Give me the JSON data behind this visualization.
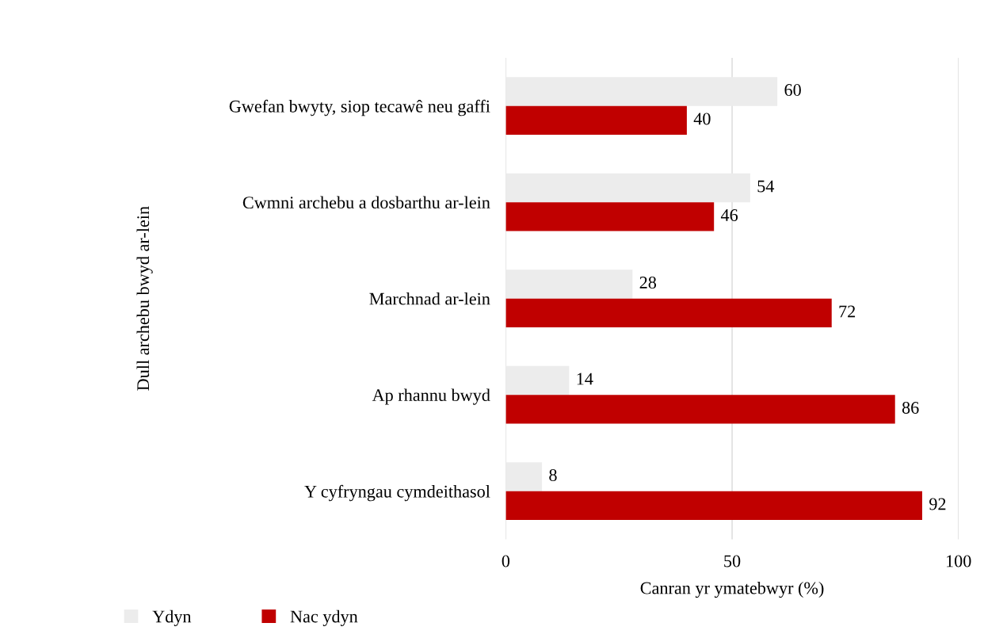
{
  "chart_data": {
    "type": "bar",
    "orientation": "horizontal",
    "categories": [
      "Gwefan bwyty, siop tecawê neu gaffi",
      "Cwmni archebu a dosbarthu ar-lein",
      "Marchnad ar-lein",
      "Ap rhannu bwyd",
      "Y cyfryngau cymdeithasol"
    ],
    "series": [
      {
        "name": "Ydyn",
        "color": "#ececec",
        "values": [
          60,
          54,
          28,
          14,
          8
        ]
      },
      {
        "name": "Nac ydyn",
        "color": "#c00000",
        "values": [
          40,
          46,
          72,
          86,
          92
        ]
      }
    ],
    "xlabel": "Canran yr ymatebwyr (%)",
    "ylabel": "Dull archebu bwyd ar-lein",
    "xlim": [
      0,
      100
    ],
    "xticks": [
      0,
      50,
      100
    ],
    "grid": "x",
    "legend": "bottom left",
    "data_labels": true
  }
}
